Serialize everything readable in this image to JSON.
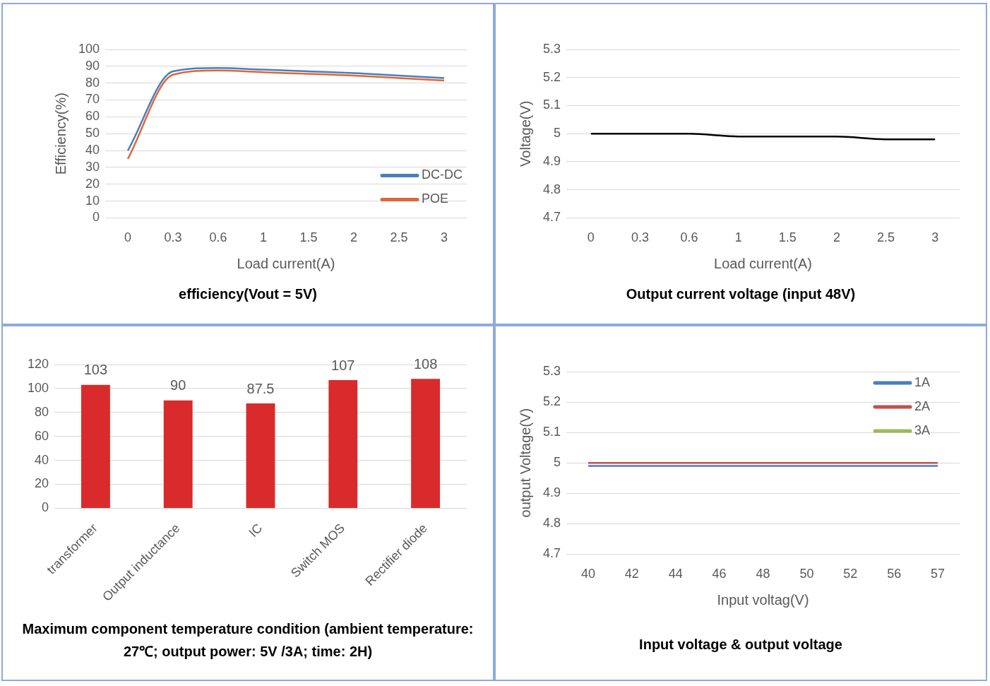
{
  "chart_data": [
    {
      "type": "line",
      "title": "efficiency(Vout = 5V)",
      "xlabel": "Load current(A)",
      "ylabel": "Efficiency(%)",
      "categories": [
        "0",
        "0.3",
        "0.6",
        "1",
        "1.5",
        "2",
        "2.5",
        "3"
      ],
      "series": [
        {
          "name": "DC-DC",
          "color": "#4a7ebb",
          "values": [
            40,
            87,
            89,
            88,
            87,
            86,
            84.5,
            83
          ]
        },
        {
          "name": "POE",
          "color": "#e0653a",
          "values": [
            35,
            85,
            87.5,
            86.5,
            85.5,
            84.5,
            83,
            81.5
          ]
        }
      ],
      "ylim": [
        0,
        100
      ],
      "yticks": [
        0,
        10,
        20,
        30,
        40,
        50,
        60,
        70,
        80,
        90,
        100
      ],
      "grid": "y",
      "legend": "bottom right",
      "marker": "none"
    },
    {
      "type": "line",
      "title": "Output current voltage (input 48V)",
      "xlabel": "Load current(A)",
      "ylabel": "Voltage(V)",
      "categories": [
        "0",
        "0.3",
        "0.6",
        "1",
        "1.5",
        "2",
        "2.5",
        "3"
      ],
      "series": [
        {
          "color": "#000000",
          "values": [
            5,
            5,
            5,
            4.99,
            4.99,
            4.99,
            4.98,
            4.98
          ]
        }
      ],
      "ylim": [
        4.7,
        5.3
      ],
      "yticks": [
        4.7,
        4.8,
        4.9,
        5,
        5.1,
        5.2,
        5.3
      ],
      "grid": "y",
      "marker": "none"
    },
    {
      "type": "bar",
      "title": "Maximum component temperature condition (ambient temperature: 27℃; output power: 5V /3A; time: 2H)",
      "categories": [
        "transformer",
        "Output inductance",
        "IC",
        "Switch MOS",
        "Rectifier diode"
      ],
      "values": [
        103,
        90,
        87.5,
        107,
        108
      ],
      "color": "#d92b2b",
      "data_labels": true,
      "ylim": [
        0,
        120
      ],
      "yticks": [
        0,
        20,
        40,
        60,
        80,
        100,
        120
      ],
      "grid": "y"
    },
    {
      "type": "line",
      "title": "Input voltage & output voltage",
      "xlabel": "Input voltag(V)",
      "ylabel": "output Voltage(V)",
      "categories": [
        "40",
        "42",
        "44",
        "46",
        "48",
        "50",
        "52",
        "56",
        "57"
      ],
      "series": [
        {
          "name": "1A",
          "color": "#4a7ebb",
          "values": [
            4.99,
            4.99,
            4.99,
            4.99,
            4.99,
            4.99,
            4.99,
            4.99,
            4.99
          ]
        },
        {
          "name": "2A",
          "color": "#c0504d",
          "values": [
            5,
            5,
            5,
            5,
            5,
            5,
            5,
            5,
            5
          ]
        },
        {
          "name": "3A",
          "color": "#9bbb59",
          "values": [
            null,
            null,
            null,
            null,
            null,
            null,
            null,
            null,
            null
          ]
        }
      ],
      "ylim": [
        4.7,
        5.3
      ],
      "yticks": [
        4.7,
        4.8,
        4.9,
        5,
        5.1,
        5.2,
        5.3
      ],
      "grid": "y",
      "legend": "top right",
      "marker": "none"
    }
  ]
}
